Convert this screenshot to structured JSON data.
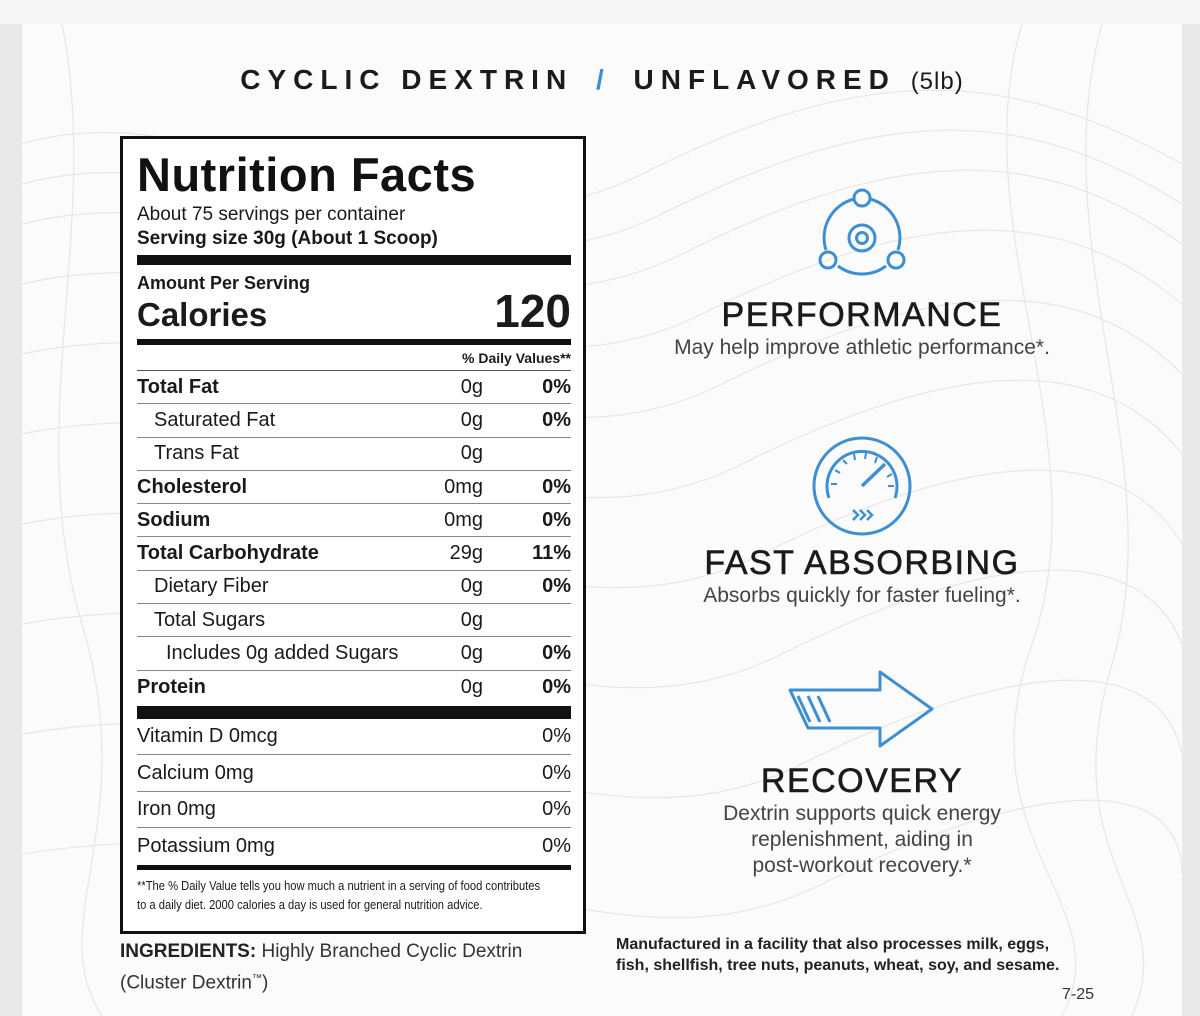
{
  "header": {
    "product": "CYCLIC DEXTRIN",
    "separator": "/",
    "flavor": "UNFLAVORED",
    "size": "(5lb)"
  },
  "label": {
    "title": "Nutrition Facts",
    "servings_per_container": "About 75 servings per container",
    "serving_size": "Serving size 30g (About 1 Scoop)",
    "amount_per_serving": "Amount Per Serving",
    "calories_label": "Calories",
    "calories_value": "120",
    "daily_values_header": "% Daily Values**",
    "nutrients": [
      {
        "name": "Total Fat",
        "amount": "0g",
        "pct": "0%"
      },
      {
        "name": "Saturated Fat",
        "amount": "0g",
        "pct": "0%"
      },
      {
        "name": "Trans Fat",
        "amount": "0g",
        "pct": ""
      },
      {
        "name": "Cholesterol",
        "amount": "0mg",
        "pct": "0%"
      },
      {
        "name": "Sodium",
        "amount": "0mg",
        "pct": "0%"
      },
      {
        "name": "Total Carbohydrate",
        "amount": "29g",
        "pct": "11%"
      },
      {
        "name": "Dietary Fiber",
        "amount": "0g",
        "pct": "0%"
      },
      {
        "name": "Total Sugars",
        "amount": "0g",
        "pct": ""
      },
      {
        "name": "Includes 0g added Sugars",
        "amount": "0g",
        "pct": "0%"
      },
      {
        "name": "Protein",
        "amount": "0g",
        "pct": "0%"
      }
    ],
    "vitamins": [
      {
        "name": "Vitamin D 0mcg",
        "pct": "0%"
      },
      {
        "name": "Calcium 0mg",
        "pct": "0%"
      },
      {
        "name": "Iron 0mg",
        "pct": "0%"
      },
      {
        "name": "Potassium 0mg",
        "pct": "0%"
      }
    ],
    "footnote_line1": "**The % Daily Value tells you how much a nutrient in a  serving of food contributes",
    "footnote_line2": "to a daily diet. 2000 calories a day is used for general nutrition advice."
  },
  "ingredients": {
    "heading": "INGREDIENTS:",
    "text": "Highly Branched Cyclic Dextrin",
    "text_line2": "(Cluster Dextrin",
    "trademark": "™",
    "close": ")"
  },
  "allergen": {
    "line1": "Manufactured in a facility that also processes milk, eggs,",
    "line2": "fish, shellfish, tree nuts, peanuts, wheat, soy, and sesame."
  },
  "code": "7-25",
  "features": [
    {
      "icon": "molecule-icon",
      "title": "PERFORMANCE",
      "desc_lines": [
        "May help improve athletic performance*."
      ]
    },
    {
      "icon": "speedometer-icon",
      "title": "FAST ABSORBING",
      "desc_lines": [
        "Absorbs quickly for faster fueling*."
      ]
    },
    {
      "icon": "arrow-right-icon",
      "title": "RECOVERY",
      "desc_lines": [
        "Dextrin supports quick energy",
        "replenishment, aiding in",
        "post-workout recovery.*"
      ]
    }
  ],
  "colors": {
    "accent": "#3d8fd1",
    "text": "#1b1b1d"
  }
}
